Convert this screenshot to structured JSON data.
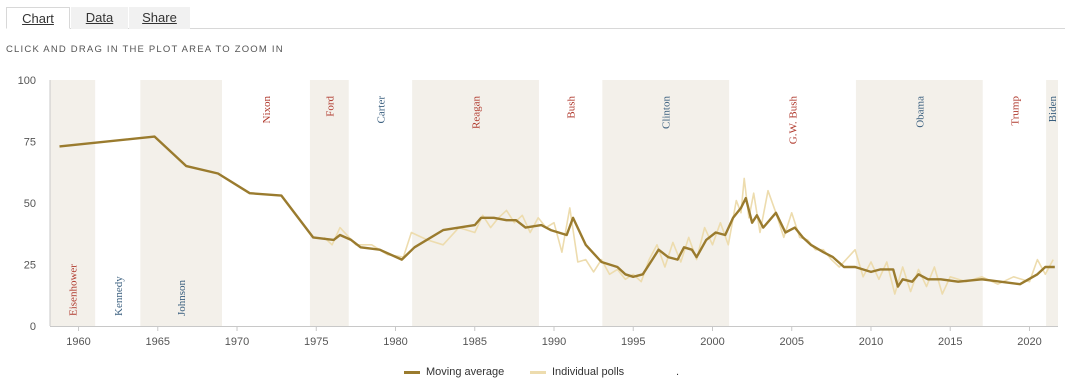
{
  "tabs": {
    "chart": "Chart",
    "data": "Data",
    "share": "Share"
  },
  "hint": "CLICK AND DRAG IN THE PLOT AREA TO ZOOM IN",
  "legend": {
    "moving_average": "Moving average",
    "individual_polls": "Individual polls",
    "extra": "."
  },
  "colors": {
    "moving_average": "#9a7b2e",
    "individual_polls": "#eddcae",
    "band": "#f3f0ea",
    "red_label": "#b03a2e",
    "blue_label": "#3a5f7f"
  },
  "chart_data": {
    "type": "line",
    "xlim": [
      1958.2,
      2021.8
    ],
    "ylim": [
      0,
      100
    ],
    "x_ticks": [
      1960,
      1965,
      1970,
      1975,
      1980,
      1985,
      1990,
      1995,
      2000,
      2005,
      2010,
      2015,
      2020
    ],
    "y_ticks": [
      0,
      25,
      50,
      75,
      100
    ],
    "grid": false,
    "legend_position": "bottom-center",
    "presidents": [
      {
        "name": "Eisenhower",
        "start": 1958.2,
        "end": 1961.05,
        "party": "R",
        "label_pos": "bottom",
        "shaded": true
      },
      {
        "name": "Kennedy",
        "start": 1961.05,
        "end": 1963.9,
        "party": "D",
        "label_pos": "bottom",
        "shaded": false
      },
      {
        "name": "Johnson",
        "start": 1963.9,
        "end": 1969.05,
        "party": "D",
        "label_pos": "bottom",
        "shaded": true
      },
      {
        "name": "Nixon",
        "start": 1969.05,
        "end": 1974.6,
        "party": "R",
        "label_pos": "top",
        "shaded": false
      },
      {
        "name": "Ford",
        "start": 1974.6,
        "end": 1977.05,
        "party": "R",
        "label_pos": "top",
        "shaded": true
      },
      {
        "name": "Carter",
        "start": 1977.05,
        "end": 1981.05,
        "party": "D",
        "label_pos": "top",
        "shaded": false
      },
      {
        "name": "Reagan",
        "start": 1981.05,
        "end": 1989.05,
        "party": "R",
        "label_pos": "top",
        "shaded": true
      },
      {
        "name": "Bush",
        "start": 1989.05,
        "end": 1993.05,
        "party": "R",
        "label_pos": "top",
        "shaded": false
      },
      {
        "name": "Clinton",
        "start": 1993.05,
        "end": 2001.05,
        "party": "D",
        "label_pos": "top",
        "shaded": true
      },
      {
        "name": "G.W. Bush",
        "start": 2001.05,
        "end": 2009.05,
        "party": "R",
        "label_pos": "top",
        "shaded": false
      },
      {
        "name": "Obama",
        "start": 2009.05,
        "end": 2017.05,
        "party": "D",
        "label_pos": "top",
        "shaded": true
      },
      {
        "name": "Trump",
        "start": 2017.05,
        "end": 2021.05,
        "party": "R",
        "label_pos": "top",
        "shaded": false
      },
      {
        "name": "Biden",
        "start": 2021.05,
        "end": 2021.8,
        "party": "D",
        "label_pos": "top",
        "shaded": true
      }
    ],
    "series": [
      {
        "name": "Moving average",
        "x": [
          1958.8,
          1964.8,
          1966.8,
          1968.8,
          1970.8,
          1972.8,
          1974.8,
          1976.1,
          1976.5,
          1977.2,
          1977.8,
          1979.0,
          1980.4,
          1981.2,
          1983.0,
          1985.0,
          1985.4,
          1986.2,
          1987.0,
          1987.6,
          1988.2,
          1989.2,
          1989.8,
          1990.8,
          1991.2,
          1992.0,
          1993.0,
          1994.0,
          1994.5,
          1995.0,
          1995.6,
          1996.2,
          1996.6,
          1997.2,
          1997.8,
          1998.2,
          1998.7,
          1999.0,
          1999.6,
          2000.2,
          2000.8,
          2001.3,
          2001.8,
          2002.1,
          2002.5,
          2002.8,
          2003.2,
          2004.0,
          2004.6,
          2005.2,
          2005.7,
          2006.2,
          2007.0,
          2007.6,
          2008.3,
          2009.0,
          2010.0,
          2010.6,
          2011.4,
          2011.7,
          2012.0,
          2012.6,
          2013.0,
          2013.6,
          2014.4,
          2015.5,
          2017.0,
          2019.4,
          2020.5,
          2021.0,
          2021.6
        ],
        "values": [
          73,
          77,
          65,
          62,
          54,
          53,
          36,
          35,
          37,
          35,
          32,
          31,
          27,
          32,
          39,
          41,
          44,
          44,
          43,
          43,
          40,
          41,
          39,
          37,
          44,
          33,
          26,
          24,
          21,
          20,
          21,
          27,
          31,
          28,
          27,
          32,
          31,
          28,
          35,
          38,
          37,
          44,
          48,
          52,
          42,
          45,
          40,
          46,
          38,
          40,
          36,
          33,
          30,
          28,
          24,
          24,
          22,
          23,
          23,
          16,
          19,
          18,
          21,
          19,
          19,
          18,
          19,
          17,
          21,
          24,
          24
        ]
      },
      {
        "name": "Individual polls",
        "x": [
          1975.5,
          1976.0,
          1976.5,
          1977.5,
          1978.5,
          1979.5,
          1980.5,
          1981.0,
          1982.0,
          1983.0,
          1984.0,
          1985.0,
          1985.5,
          1986.0,
          1986.5,
          1987.0,
          1987.5,
          1988.0,
          1988.5,
          1989.0,
          1989.5,
          1990.0,
          1990.5,
          1991.0,
          1991.5,
          1992.0,
          1992.5,
          1993.0,
          1993.5,
          1994.0,
          1994.5,
          1995.0,
          1995.5,
          1996.0,
          1996.5,
          1997.0,
          1997.5,
          1998.0,
          1998.5,
          1999.0,
          1999.5,
          2000.0,
          2000.5,
          2001.0,
          2001.5,
          2001.8,
          2002.0,
          2002.3,
          2002.6,
          2003.0,
          2003.5,
          2004.0,
          2004.5,
          2005.0,
          2005.5,
          2006.0,
          2006.5,
          2007.0,
          2007.5,
          2008.0,
          2009.0,
          2009.5,
          2010.0,
          2010.5,
          2011.0,
          2011.5,
          2012.0,
          2012.5,
          2013.0,
          2013.5,
          2014.0,
          2014.5,
          2015.0,
          2016.0,
          2017.0,
          2018.0,
          2019.0,
          2020.0,
          2020.5,
          2021.0,
          2021.5
        ],
        "values": [
          36,
          33,
          40,
          33,
          33,
          29,
          28,
          38,
          35,
          33,
          40,
          38,
          45,
          40,
          44,
          47,
          42,
          45,
          38,
          44,
          40,
          42,
          30,
          48,
          26,
          27,
          22,
          27,
          21,
          23,
          19,
          21,
          18,
          27,
          33,
          24,
          34,
          26,
          36,
          27,
          40,
          33,
          42,
          33,
          51,
          46,
          60,
          44,
          54,
          38,
          55,
          46,
          36,
          46,
          36,
          35,
          31,
          31,
          27,
          24,
          31,
          20,
          26,
          19,
          26,
          13,
          24,
          14,
          23,
          16,
          24,
          13,
          20,
          18,
          20,
          17,
          20,
          18,
          27,
          21,
          27
        ]
      }
    ]
  }
}
